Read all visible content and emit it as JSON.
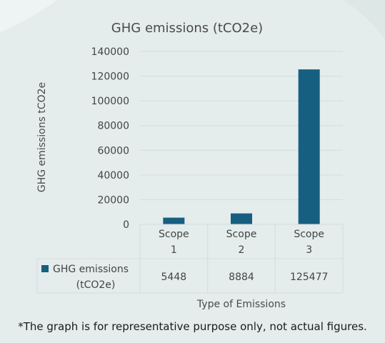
{
  "chart_data": {
    "type": "bar",
    "title": "GHG emissions (tCO2e)",
    "xlabel": "Type of Emissions",
    "ylabel": "GHG emissions tCO2e",
    "ylim": [
      0,
      140000
    ],
    "yticks": [
      "0",
      "20000",
      "40000",
      "60000",
      "80000",
      "100000",
      "120000",
      "140000"
    ],
    "categories": [
      [
        "Scope",
        "1"
      ],
      [
        "Scope",
        "2"
      ],
      [
        "Scope",
        "3"
      ]
    ],
    "series": [
      {
        "name": "GHG emissions (tCO2e)",
        "name_lines": [
          "GHG emissions",
          "(tCO2e)"
        ],
        "values": [
          5448,
          8884,
          125477
        ],
        "value_labels": [
          "5448",
          "8884",
          "125477"
        ],
        "color": "#175f80"
      }
    ],
    "grid": true,
    "data_table": true
  },
  "footnote": "*The graph is for representative purpose only, not actual figures.",
  "colors": {
    "background": "#e4edec",
    "gridline": "#d6dcdb",
    "text": "#444444"
  }
}
